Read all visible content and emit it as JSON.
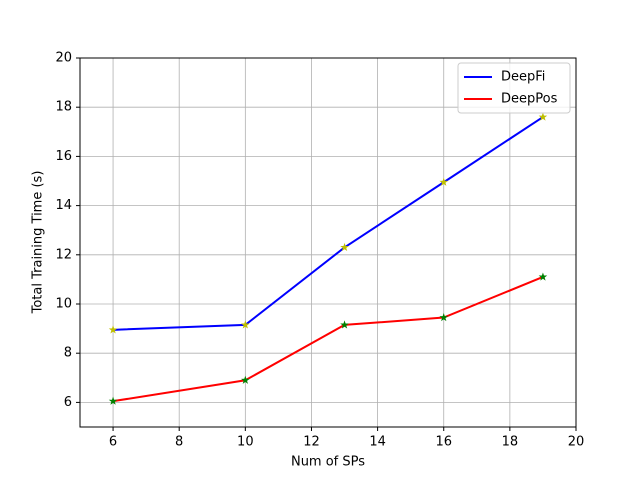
{
  "chart_data": {
    "type": "line",
    "x_label": "Num of SPs",
    "y_label": "Total Training Time (s)",
    "x": [
      6,
      10,
      13,
      16,
      19
    ],
    "series": [
      {
        "name": "DeepFi",
        "color": "#0000ff",
        "marker_color": "#bfbf00",
        "values": [
          8.95,
          9.15,
          12.3,
          14.95,
          17.6
        ]
      },
      {
        "name": "DeepPos",
        "color": "#ff0000",
        "marker_color": "#008000",
        "values": [
          6.05,
          6.9,
          9.15,
          9.45,
          11.1
        ]
      }
    ],
    "xlim": [
      5,
      20
    ],
    "xticks": [
      6,
      8,
      10,
      12,
      14,
      16,
      18,
      20
    ],
    "ylim": [
      5,
      20
    ],
    "yticks": [
      6,
      8,
      10,
      12,
      14,
      16,
      18,
      20
    ],
    "grid": true,
    "legend": "upper right"
  }
}
